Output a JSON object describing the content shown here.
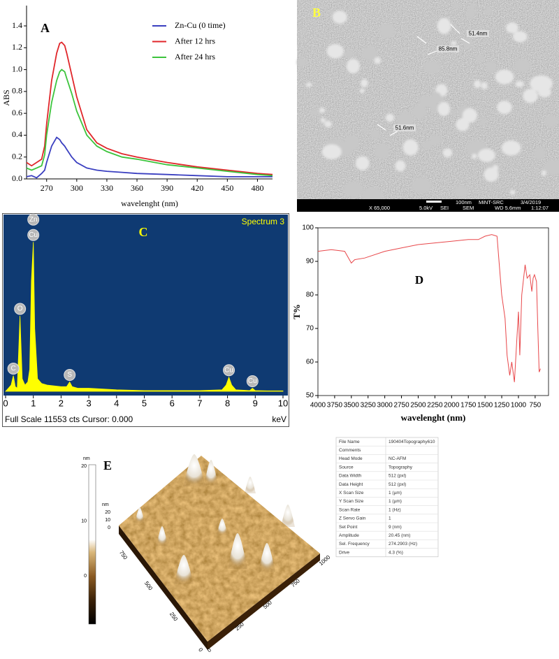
{
  "chart_data": [
    {
      "type": "line",
      "label": "A",
      "y_label": "ABS",
      "x_label": "wavelenght (nm)",
      "x": [
        250,
        255,
        260,
        265,
        268,
        270,
        275,
        280,
        283,
        285,
        288,
        290,
        295,
        300,
        310,
        320,
        330,
        345,
        360,
        390,
        420,
        450,
        480,
        495
      ],
      "xlim": [
        250,
        495
      ],
      "xticks": [
        270,
        300,
        330,
        360,
        390,
        420,
        450,
        480
      ],
      "ylim": [
        0,
        1.5
      ],
      "yticks": [
        {
          "value": 0,
          "label": "0.0"
        },
        0.2,
        0.4,
        0.6,
        0.8,
        {
          "value": 1,
          "label": "1.0"
        },
        1.2,
        1.4
      ],
      "legend": "upper right",
      "series": [
        {
          "name": "Zn-Cu (0 time)",
          "color": "#3a3fc0",
          "values": [
            0.02,
            0.03,
            0.01,
            0.05,
            0.08,
            0.15,
            0.3,
            0.38,
            0.36,
            0.33,
            0.3,
            0.27,
            0.2,
            0.15,
            0.1,
            0.08,
            0.07,
            0.06,
            0.05,
            0.04,
            0.03,
            0.02,
            0.02,
            0.02
          ]
        },
        {
          "name": "After 12 hrs",
          "color": "#e0262a",
          "values": [
            0.15,
            0.12,
            0.15,
            0.18,
            0.3,
            0.5,
            0.9,
            1.15,
            1.24,
            1.25,
            1.22,
            1.15,
            0.95,
            0.75,
            0.45,
            0.33,
            0.28,
            0.23,
            0.2,
            0.15,
            0.11,
            0.08,
            0.05,
            0.04
          ]
        },
        {
          "name": "After 24 hrs",
          "color": "#3cc43c",
          "values": [
            0.1,
            0.08,
            0.1,
            0.12,
            0.22,
            0.4,
            0.7,
            0.9,
            0.98,
            1.0,
            0.98,
            0.92,
            0.78,
            0.62,
            0.4,
            0.3,
            0.25,
            0.2,
            0.18,
            0.13,
            0.1,
            0.07,
            0.04,
            0.03
          ]
        }
      ]
    },
    {
      "type": "area",
      "label": "C",
      "title": "Spectrum 3",
      "footer": "Full Scale 11553 cts Cursor: 0.000",
      "x_unit": "keV",
      "x": [
        0,
        0.1,
        0.2,
        0.28,
        0.35,
        0.42,
        0.52,
        0.6,
        0.7,
        0.8,
        0.87,
        0.93,
        1.0,
        1.05,
        1.15,
        1.3,
        1.5,
        2.0,
        2.2,
        2.31,
        2.4,
        2.6,
        3,
        4,
        5,
        6,
        7,
        7.8,
        7.95,
        8.05,
        8.15,
        8.3,
        8.8,
        8.9,
        9.0,
        9.5,
        10
      ],
      "values": [
        0,
        2,
        4,
        10,
        3,
        2,
        48,
        8,
        4,
        6,
        14,
        70,
        95,
        40,
        8,
        5,
        4,
        3,
        3,
        6,
        3,
        2,
        2,
        1,
        0.5,
        0.5,
        0.5,
        1,
        4,
        9,
        4,
        1,
        0.5,
        2,
        0.5,
        0.3,
        0.3
      ],
      "xlim": [
        0,
        10
      ],
      "xticks": [
        0,
        1,
        2,
        3,
        4,
        5,
        6,
        7,
        8,
        9,
        10
      ],
      "ylim": [
        0,
        100
      ],
      "color": "#ffff00",
      "background": "#0f3a72",
      "peaks": [
        {
          "label": "Zn",
          "x": 1.0
        },
        {
          "label": "Cu",
          "x": 1.0
        },
        {
          "label": "O",
          "x": 0.52
        },
        {
          "label": "C",
          "x": 0.28
        },
        {
          "label": "S",
          "x": 2.31
        },
        {
          "label": "Cu",
          "x": 8.05
        },
        {
          "label": "Cu",
          "x": 8.9
        }
      ]
    },
    {
      "type": "line",
      "label": "D",
      "y_label": "T%",
      "x_label": "wavelenght (nm)",
      "x": [
        4000,
        3800,
        3600,
        3500,
        3450,
        3300,
        3000,
        2750,
        2500,
        2250,
        2000,
        1750,
        1600,
        1500,
        1400,
        1320,
        1250,
        1200,
        1170,
        1130,
        1100,
        1060,
        1020,
        1000,
        980,
        950,
        900,
        870,
        830,
        800,
        780,
        760,
        730,
        710,
        690,
        670
      ],
      "values": [
        93,
        93.5,
        93,
        89.5,
        90.5,
        91,
        93,
        94,
        95,
        95.5,
        96,
        96.5,
        96.5,
        97.5,
        98,
        97.5,
        80,
        73,
        62,
        56,
        60,
        54,
        68,
        75,
        62,
        80,
        89,
        85,
        86,
        81,
        85,
        86,
        84,
        70,
        57,
        58
      ],
      "color": "#e8474a",
      "xlim": [
        4000,
        550
      ],
      "xticks": [
        4000,
        3750,
        3500,
        3250,
        3000,
        2750,
        2500,
        2250,
        2000,
        1750,
        1500,
        1250,
        1000,
        750
      ],
      "ylim": [
        50,
        100
      ],
      "yticks": [
        50,
        60,
        70,
        80,
        90,
        100
      ]
    }
  ],
  "sem_image": {
    "label": "B",
    "measurements": [
      "51.4nm",
      "85.8nm",
      "51.6nm"
    ],
    "scale_bar": "100nm",
    "footer": [
      "MiNT-SRC",
      "3/4/2019",
      "X 65,000",
      "5.0kV",
      "SEI",
      "SEM",
      "WD 5.6mm",
      "1:12:07"
    ]
  },
  "afm_image": {
    "label": "E",
    "colorbar_unit": "nm",
    "colorbar_ticks": [
      20,
      10,
      0
    ],
    "z_unit": "nm",
    "z_ticks": [
      20,
      10,
      0
    ],
    "x_ticks": [
      0,
      250,
      500,
      750,
      1000
    ],
    "y_ticks": [
      0,
      250,
      500,
      750
    ],
    "info_table": [
      [
        "File Name",
        "190404Topography610"
      ],
      [
        "Comments"
      ],
      [
        "Head Mode",
        "NC-AFM"
      ],
      [
        "Source",
        "Topography"
      ],
      [
        "Data Width",
        "512 (pxl)"
      ],
      [
        "Data Height",
        "512 (pxl)"
      ],
      [
        "X Scan Size",
        "1 (µm)"
      ],
      [
        "Y Scan Size",
        "1 (µm)"
      ],
      [
        "Scan Rate",
        "1 (Hz)"
      ],
      [
        "Z Servo Gain",
        "1"
      ],
      [
        "Set Point",
        "9 (nm)"
      ],
      [
        "Amplitude",
        "20.45 (nm)"
      ],
      [
        "Sel. Frequency",
        "274.2903 (Hz)"
      ],
      [
        "Drive",
        "4.3 (%)"
      ]
    ]
  }
}
